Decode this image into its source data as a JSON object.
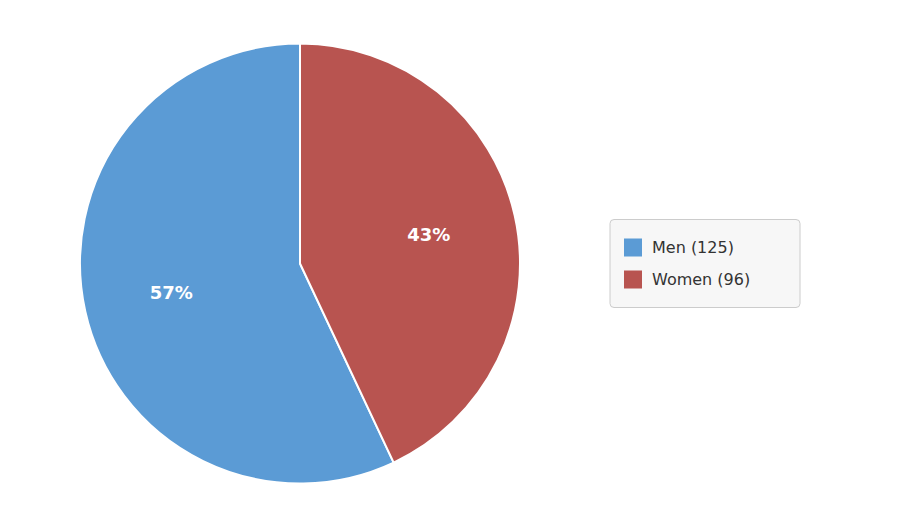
{
  "chart_data": {
    "type": "pie",
    "categories": [
      "Men (125)",
      "Women (96)"
    ],
    "values": [
      57,
      43
    ],
    "value_labels": [
      "57%",
      "43%"
    ],
    "colors": [
      "#5b9bd5",
      "#b85450"
    ],
    "data_labels": true,
    "legend": "right"
  }
}
